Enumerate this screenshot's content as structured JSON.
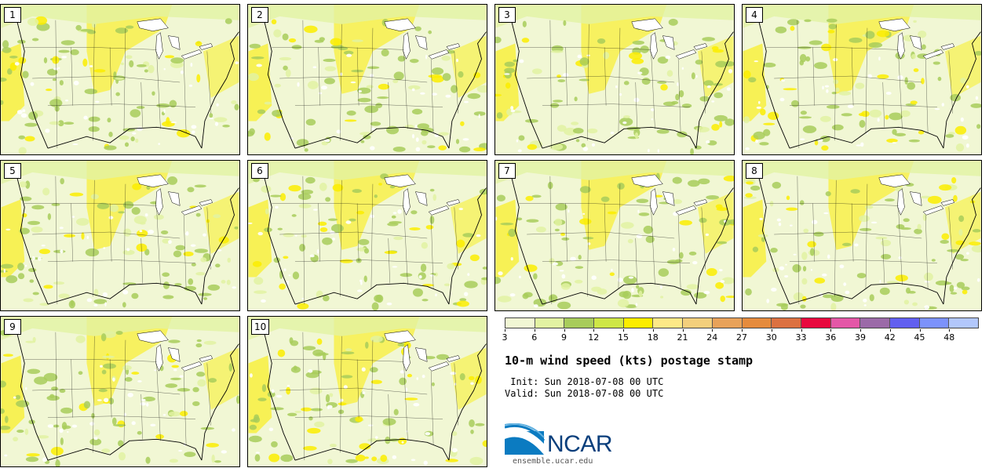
{
  "members": [
    "1",
    "2",
    "3",
    "4",
    "5",
    "6",
    "7",
    "8",
    "9",
    "10"
  ],
  "colorbar": {
    "ticks": [
      "3",
      "6",
      "9",
      "12",
      "15",
      "18",
      "21",
      "24",
      "27",
      "30",
      "33",
      "36",
      "39",
      "42",
      "45",
      "48"
    ],
    "colors": [
      "#f1f7d4",
      "#e2f2a2",
      "#a8cc5b",
      "#cee646",
      "#fbed00",
      "#fde987",
      "#f3cf7c",
      "#e8a25a",
      "#e58b3d",
      "#dc7141",
      "#e8093e",
      "#e457a7",
      "#9b6aa8",
      "#615ff0",
      "#7c92fb",
      "#b2c7fb"
    ]
  },
  "title": "10-m wind speed (kts) postage stamp",
  "init_line": " Init: Sun 2018-07-08 00 UTC",
  "valid_line": "Valid: Sun 2018-07-08 00 UTC",
  "logo": {
    "text": "NCAR",
    "url": "ensemble.ucar.edu"
  },
  "colors": {
    "land": "#f1f7d4",
    "green": "#a8cc5b",
    "lightgreen": "#e2f2a2",
    "yellow": "#fbed00",
    "water": "#ffffff"
  }
}
